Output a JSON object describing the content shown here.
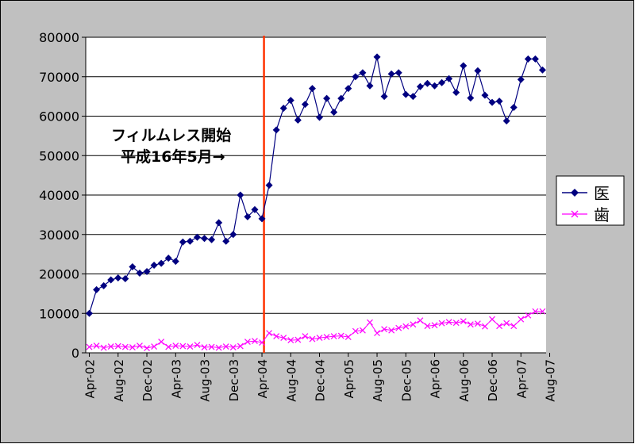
{
  "chart_data": {
    "type": "line",
    "title": "",
    "xlabel": "",
    "ylabel": "",
    "ylim": [
      0,
      80000
    ],
    "yticks": [
      0,
      10000,
      20000,
      30000,
      40000,
      50000,
      60000,
      70000,
      80000
    ],
    "x": [
      "2002-04",
      "2002-05",
      "2002-06",
      "2002-07",
      "2002-08",
      "2002-09",
      "2002-10",
      "2002-11",
      "2002-12",
      "2003-01",
      "2003-02",
      "2003-03",
      "2003-04",
      "2003-05",
      "2003-06",
      "2003-07",
      "2003-08",
      "2003-09",
      "2003-10",
      "2003-11",
      "2003-12",
      "2004-01",
      "2004-02",
      "2004-03",
      "2004-04",
      "2004-05",
      "2004-06",
      "2004-07",
      "2004-08",
      "2004-09",
      "2004-10",
      "2004-11",
      "2004-12",
      "2005-01",
      "2005-02",
      "2005-03",
      "2005-04",
      "2005-05",
      "2005-06",
      "2005-07",
      "2005-08",
      "2005-09",
      "2005-10",
      "2005-11",
      "2005-12",
      "2006-01",
      "2006-02",
      "2006-03",
      "2006-04",
      "2006-05",
      "2006-06",
      "2006-07",
      "2006-08",
      "2006-09",
      "2006-10",
      "2006-11",
      "2006-12",
      "2007-01",
      "2007-02",
      "2007-03",
      "2007-04",
      "2007-05",
      "2007-06",
      "2007-07"
    ],
    "x_tick_labels": [
      "Apr-02",
      "Aug-02",
      "Dec-02",
      "Apr-03",
      "Aug-03",
      "Dec-03",
      "Apr-04",
      "Aug-04",
      "Dec-04",
      "Apr-05",
      "Aug-05",
      "Dec-05",
      "Apr-06",
      "Aug-06",
      "Dec-06",
      "Apr-07",
      "Aug-07"
    ],
    "series": [
      {
        "name": "医",
        "color": "#000080",
        "marker": "diamond",
        "values": [
          10000,
          16000,
          17000,
          18500,
          19000,
          18800,
          21800,
          20200,
          20600,
          22200,
          22700,
          24000,
          23200,
          28100,
          28300,
          29300,
          29000,
          28700,
          33000,
          28300,
          30000,
          40000,
          34500,
          36300,
          34000,
          42500,
          56500,
          62000,
          64000,
          59000,
          63000,
          67000,
          59700,
          64500,
          61000,
          64500,
          67000,
          70000,
          71000,
          67700,
          75000,
          65000,
          70700,
          71000,
          65500,
          65000,
          67500,
          68300,
          67700,
          68500,
          69500,
          66000,
          72800,
          64600,
          71500,
          65300,
          63500,
          63800,
          58800,
          62200,
          69300,
          74500,
          74500,
          71700
        ]
      },
      {
        "name": "歯",
        "color": "#ff00ff",
        "marker": "x",
        "values": [
          1500,
          1800,
          1300,
          1600,
          1700,
          1500,
          1400,
          1800,
          1200,
          1600,
          2800,
          1500,
          1800,
          1700,
          1600,
          2000,
          1400,
          1500,
          1300,
          1600,
          1400,
          1700,
          2800,
          3000,
          2600,
          5000,
          4200,
          3800,
          3200,
          3300,
          4200,
          3500,
          3800,
          4000,
          4200,
          4300,
          4000,
          5500,
          5700,
          7700,
          5000,
          6000,
          5700,
          6300,
          6700,
          7200,
          8200,
          6800,
          7000,
          7500,
          7800,
          7600,
          8000,
          7200,
          7400,
          6700,
          8500,
          6800,
          7500,
          6800,
          8500,
          9500,
          10500,
          10500
        ]
      }
    ],
    "annotation": {
      "line1": "フィルムレス開始",
      "line2": "平成16年5月→",
      "marker_at": "2004-04",
      "marker_color": "#ff3300"
    },
    "grid": true,
    "legend": "right",
    "colors": {
      "frame_bg": "#c0c0c0",
      "plot_bg": "#ffffff",
      "gridline": "#000000"
    }
  }
}
